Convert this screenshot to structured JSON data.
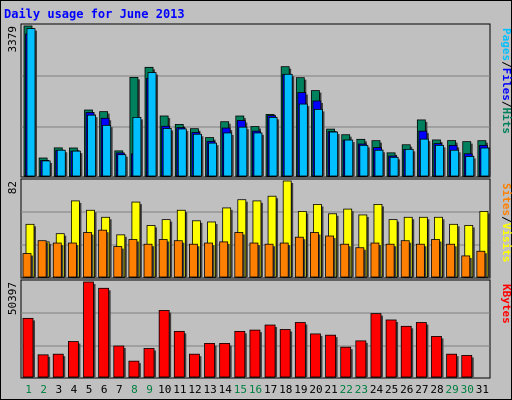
{
  "chart_data": [
    {
      "type": "bar",
      "title": "Daily usage for June 2013",
      "ymax_label": "3379",
      "categories": [
        "1",
        "2",
        "3",
        "4",
        "5",
        "6",
        "7",
        "8",
        "9",
        "10",
        "11",
        "12",
        "13",
        "14",
        "15",
        "16",
        "17",
        "18",
        "19",
        "20",
        "21",
        "22",
        "23",
        "24",
        "25",
        "26",
        "27",
        "28",
        "29",
        "30",
        "31"
      ],
      "weekend_days": [
        "1",
        "2",
        "8",
        "9",
        "15",
        "16",
        "22",
        "23",
        "29",
        "30"
      ],
      "legend": [
        "Pages",
        "/",
        "Files",
        "/",
        "Hits"
      ],
      "series": [
        {
          "name": "Hits",
          "color": "#00805c",
          "values": [
            3379,
            405,
            634,
            631,
            1486,
            1450,
            566,
            2222,
            2448,
            1352,
            1161,
            1066,
            866,
            1223,
            1351,
            1115,
            1387,
            2463,
            2215,
            1924,
            1056,
            930,
            826,
            796,
            522,
            704,
            1263,
            812,
            798,
            774,
            796
          ]
        },
        {
          "name": "Files",
          "color": "#0000ff",
          "values": [
            3200,
            350,
            580,
            560,
            1430,
            1300,
            520,
            500,
            2200,
            1120,
            1090,
            980,
            780,
            1080,
            1250,
            1010,
            1360,
            2290,
            1880,
            1690,
            1000,
            810,
            720,
            640,
            450,
            600,
            1010,
            730,
            690,
            500,
            690
          ]
        },
        {
          "name": "Pages",
          "color": "#00c0ff",
          "values": [
            3320,
            340,
            580,
            560,
            1370,
            1140,
            480,
            1320,
            2330,
            1070,
            1060,
            940,
            740,
            970,
            1100,
            970,
            1320,
            2290,
            1620,
            1500,
            990,
            810,
            690,
            580,
            420,
            600,
            830,
            690,
            580,
            440,
            630
          ]
        }
      ]
    },
    {
      "type": "bar",
      "ymax_label": "82",
      "categories": [
        "1",
        "2",
        "3",
        "4",
        "5",
        "6",
        "7",
        "8",
        "9",
        "10",
        "11",
        "12",
        "13",
        "14",
        "15",
        "16",
        "17",
        "18",
        "19",
        "20",
        "21",
        "22",
        "23",
        "24",
        "25",
        "26",
        "27",
        "28",
        "29",
        "30",
        "31"
      ],
      "legend": [
        "Sites",
        "/",
        "Visits"
      ],
      "series": [
        {
          "name": "Visits",
          "color": "#ffff00",
          "values": [
            45,
            30,
            37,
            65,
            57,
            51,
            36,
            64,
            44,
            49,
            57,
            48,
            47,
            59,
            66,
            65,
            69,
            82,
            56,
            62,
            54,
            58,
            53,
            62,
            49,
            51,
            51,
            51,
            45,
            44,
            56
          ]
        },
        {
          "name": "Sites",
          "color": "#ff8000",
          "values": [
            20,
            31,
            29,
            29,
            38,
            40,
            26,
            32,
            28,
            32,
            31,
            28,
            29,
            30,
            38,
            29,
            28,
            29,
            34,
            38,
            35,
            28,
            25,
            29,
            28,
            31,
            28,
            32,
            28,
            18,
            22
          ]
        }
      ]
    },
    {
      "type": "bar",
      "ymax_label": "50397",
      "categories": [
        "1",
        "2",
        "3",
        "4",
        "5",
        "6",
        "7",
        "8",
        "9",
        "10",
        "11",
        "12",
        "13",
        "14",
        "15",
        "16",
        "17",
        "18",
        "19",
        "20",
        "21",
        "22",
        "23",
        "24",
        "25",
        "26",
        "27",
        "28",
        "29",
        "30",
        "31"
      ],
      "legend": [
        "KBytes"
      ],
      "series": [
        {
          "name": "KBytes",
          "color": "#ff0000",
          "values": [
            31096,
            11764,
            12101,
            18824,
            50397,
            47059,
            16471,
            8403,
            15126,
            35294,
            24200,
            12101,
            17815,
            17815,
            24200,
            24874,
            27563,
            25210,
            28908,
            22857,
            22185,
            15798,
            19160,
            33613,
            30251,
            26891,
            28908,
            21513,
            12101,
            11428,
            null
          ]
        }
      ]
    }
  ],
  "colors": {
    "background": "#c0c0c0",
    "plot_area": "#c0c0c0",
    "grid": "#808080",
    "title": "#0000ff",
    "weekday_label": "#000000",
    "weekend_label": "#008040"
  }
}
